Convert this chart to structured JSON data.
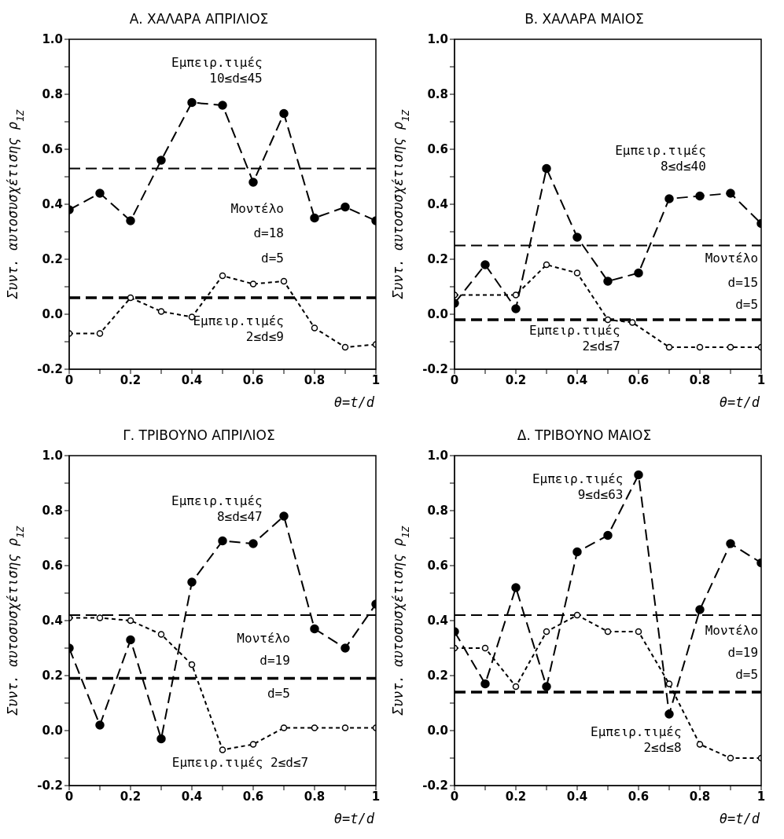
{
  "chart_data": [
    {
      "type": "line",
      "title": "Α. ΧΑΛΑΡΑ ΑΠΡΙΛΙΟΣ",
      "xlabel": "θ=t/d",
      "ylabel": "Συντ. αυτοσυσχέτισης ρ$_{1Z}$",
      "x": [
        0,
        0.1,
        0.2,
        0.3,
        0.4,
        0.5,
        0.6,
        0.7,
        0.8,
        0.9,
        1
      ],
      "series": [
        {
          "name": "Εμπειρ.τιμές 10≤d≤45",
          "color": "#000000",
          "line_style": "dashed",
          "values": [
            0.38,
            0.44,
            0.34,
            0.56,
            0.77,
            0.76,
            0.48,
            0.73,
            0.35,
            0.39,
            0.34
          ]
        },
        {
          "name": "Εμπειρ.τιμές 2≤d≤9",
          "color": "#000000",
          "line_style": "dotted",
          "values": [
            -0.07,
            -0.07,
            0.06,
            0.01,
            -0.01,
            0.14,
            0.11,
            0.12,
            -0.05,
            -0.12,
            -0.11
          ]
        }
      ],
      "ref_lines": [
        {
          "axis": "y",
          "value": 0.53,
          "line_style": "dashed"
        },
        {
          "axis": "y",
          "value": 0.06,
          "line_style": "dashed"
        }
      ],
      "annotations": [
        "Μοντέλο",
        "d=18",
        "d=5"
      ],
      "marker": "circle",
      "xlim": [
        0,
        1
      ],
      "xticks": [
        {
          "value": 0,
          "label": "0"
        },
        {
          "value": 0.1,
          "label": null
        },
        {
          "value": 0.2,
          "label": "0.2"
        },
        {
          "value": 0.3,
          "label": null
        },
        {
          "value": 0.4,
          "label": "0.4"
        },
        {
          "value": 0.5,
          "label": null
        },
        {
          "value": 0.6,
          "label": "0.6"
        },
        {
          "value": 0.7,
          "label": null
        },
        {
          "value": 0.8,
          "label": "0.8"
        },
        {
          "value": 0.9,
          "label": null
        },
        {
          "value": 1,
          "label": "1"
        }
      ],
      "ylim": [
        -0.2,
        1
      ],
      "yticks": [
        {
          "value": -0.2,
          "label": "-0.2"
        },
        {
          "value": -0.1,
          "label": null
        },
        {
          "value": 0,
          "label": "0.0"
        },
        {
          "value": 0.1,
          "label": null
        },
        {
          "value": 0.2,
          "label": "0.2"
        },
        {
          "value": 0.3,
          "label": null
        },
        {
          "value": 0.4,
          "label": "0.4"
        },
        {
          "value": 0.5,
          "label": null
        },
        {
          "value": 0.6,
          "label": "0.6"
        },
        {
          "value": 0.7,
          "label": null
        },
        {
          "value": 0.8,
          "label": "0.8"
        },
        {
          "value": 0.9,
          "label": null
        },
        {
          "value": 1,
          "label": "1.0"
        }
      ]
    },
    {
      "type": "line",
      "title": "Β. ΧΑΛΑΡΑ ΜΑΙΟΣ",
      "xlabel": "θ=t/d",
      "ylabel": "Συντ. αυτοσυσχέτισης ρ$_{1Z}$",
      "x": [
        0,
        0.1,
        0.2,
        0.3,
        0.4,
        0.5,
        0.6,
        0.7,
        0.8,
        0.9,
        1
      ],
      "series": [
        {
          "name": "Εμπειρ.τιμές 8≤d≤40",
          "color": "#000000",
          "line_style": "dashed",
          "values": [
            0.04,
            0.18,
            0.02,
            0.53,
            0.28,
            0.12,
            0.15,
            0.42,
            0.43,
            0.44,
            0.33
          ]
        },
        {
          "name": "Εμπειρ.τιμές 2≤d≤7",
          "color": "#000000",
          "line_style": "dotted",
          "x": [
            0,
            0.2,
            0.3,
            0.4,
            0.5,
            0.58,
            0.7,
            0.8,
            0.9,
            1
          ],
          "values": [
            0.07,
            0.07,
            0.18,
            0.15,
            -0.02,
            -0.03,
            -0.12,
            -0.12,
            -0.12,
            -0.12
          ]
        }
      ],
      "ref_lines": [
        {
          "axis": "y",
          "value": 0.25,
          "line_style": "dashed"
        },
        {
          "axis": "y",
          "value": -0.02,
          "line_style": "dashed"
        }
      ],
      "annotations": [
        "Μοντέλο",
        "d=15",
        "d=5"
      ],
      "marker": "circle",
      "xlim": [
        0,
        1
      ],
      "xticks": [
        {
          "value": 0,
          "label": "0"
        },
        {
          "value": 0.1,
          "label": null
        },
        {
          "value": 0.2,
          "label": "0.2"
        },
        {
          "value": 0.3,
          "label": null
        },
        {
          "value": 0.4,
          "label": "0.4"
        },
        {
          "value": 0.5,
          "label": null
        },
        {
          "value": 0.6,
          "label": "0.6"
        },
        {
          "value": 0.7,
          "label": null
        },
        {
          "value": 0.8,
          "label": "0.8"
        },
        {
          "value": 0.9,
          "label": null
        },
        {
          "value": 1,
          "label": "1"
        }
      ],
      "ylim": [
        -0.2,
        1
      ],
      "yticks": [
        {
          "value": -0.2,
          "label": "-0.2"
        },
        {
          "value": -0.1,
          "label": null
        },
        {
          "value": 0,
          "label": "0.0"
        },
        {
          "value": 0.1,
          "label": null
        },
        {
          "value": 0.2,
          "label": "0.2"
        },
        {
          "value": 0.3,
          "label": null
        },
        {
          "value": 0.4,
          "label": "0.4"
        },
        {
          "value": 0.5,
          "label": null
        },
        {
          "value": 0.6,
          "label": "0.6"
        },
        {
          "value": 0.7,
          "label": null
        },
        {
          "value": 0.8,
          "label": "0.8"
        },
        {
          "value": 0.9,
          "label": null
        },
        {
          "value": 1,
          "label": "1.0"
        }
      ]
    },
    {
      "type": "line",
      "title": "Γ. ΤΡΙΒΟΥΝΟ ΑΠΡΙΛΙΟΣ",
      "xlabel": "θ=t/d",
      "ylabel": "Συντ. αυτοσυσχέτισης ρ$_{1Z}$",
      "x": [
        0,
        0.1,
        0.2,
        0.3,
        0.4,
        0.5,
        0.6,
        0.7,
        0.8,
        0.9,
        1
      ],
      "series": [
        {
          "name": "Εμπειρ.τιμές 8≤d≤47",
          "color": "#000000",
          "line_style": "dashed",
          "values": [
            0.3,
            0.02,
            0.33,
            -0.03,
            0.54,
            0.69,
            0.68,
            0.78,
            0.37,
            0.3,
            0.46
          ]
        },
        {
          "name": "Εμπειρ.τιμές 2≤d≤7",
          "color": "#000000",
          "line_style": "dotted",
          "values": [
            0.41,
            0.41,
            0.4,
            0.35,
            0.24,
            -0.07,
            -0.05,
            0.01,
            0.01,
            0.01,
            0.01
          ]
        }
      ],
      "ref_lines": [
        {
          "axis": "y",
          "value": 0.42,
          "line_style": "dashed"
        },
        {
          "axis": "y",
          "value": 0.19,
          "line_style": "dashed"
        }
      ],
      "annotations": [
        "Μοντέλο",
        "d=19",
        "d=5"
      ],
      "marker": "circle",
      "xlim": [
        0,
        1
      ],
      "xticks": [
        {
          "value": 0,
          "label": "0"
        },
        {
          "value": 0.1,
          "label": null
        },
        {
          "value": 0.2,
          "label": "0.2"
        },
        {
          "value": 0.3,
          "label": null
        },
        {
          "value": 0.4,
          "label": "0.4"
        },
        {
          "value": 0.5,
          "label": null
        },
        {
          "value": 0.6,
          "label": "0.6"
        },
        {
          "value": 0.7,
          "label": null
        },
        {
          "value": 0.8,
          "label": "0.8"
        },
        {
          "value": 0.9,
          "label": null
        },
        {
          "value": 1,
          "label": "1"
        }
      ],
      "ylim": [
        -0.2,
        1
      ],
      "yticks": [
        {
          "value": -0.2,
          "label": "-0.2"
        },
        {
          "value": -0.1,
          "label": null
        },
        {
          "value": 0,
          "label": "0.0"
        },
        {
          "value": 0.1,
          "label": null
        },
        {
          "value": 0.2,
          "label": "0.2"
        },
        {
          "value": 0.3,
          "label": null
        },
        {
          "value": 0.4,
          "label": "0.4"
        },
        {
          "value": 0.5,
          "label": null
        },
        {
          "value": 0.6,
          "label": "0.6"
        },
        {
          "value": 0.7,
          "label": null
        },
        {
          "value": 0.8,
          "label": "0.8"
        },
        {
          "value": 0.9,
          "label": null
        },
        {
          "value": 1,
          "label": "1.0"
        }
      ]
    },
    {
      "type": "line",
      "title": "Δ. ΤΡΙΒΟΥΝΟ ΜΑΙΟΣ",
      "xlabel": "θ=t/d",
      "ylabel": "Συντ. αυτοσυσχέτισης ρ$_{1Z}$",
      "x": [
        0,
        0.1,
        0.2,
        0.3,
        0.4,
        0.5,
        0.6,
        0.7,
        0.8,
        0.9,
        1
      ],
      "series": [
        {
          "name": "Εμπειρ.τιμές 9≤d≤63",
          "color": "#000000",
          "line_style": "dashed",
          "values": [
            0.36,
            0.17,
            0.52,
            0.16,
            0.65,
            0.71,
            0.93,
            0.06,
            0.44,
            0.68,
            0.61
          ]
        },
        {
          "name": "Εμπειρ.τιμές 2≤d≤8",
          "color": "#000000",
          "line_style": "dotted",
          "values": [
            0.3,
            0.3,
            0.16,
            0.36,
            0.42,
            0.36,
            0.36,
            0.17,
            -0.05,
            -0.1,
            -0.1
          ]
        }
      ],
      "ref_lines": [
        {
          "axis": "y",
          "value": 0.42,
          "line_style": "dashed"
        },
        {
          "axis": "y",
          "value": 0.14,
          "line_style": "dashed"
        }
      ],
      "annotations": [
        "Μοντέλο",
        "d=19",
        "d=5"
      ],
      "marker": "circle",
      "xlim": [
        0,
        1
      ],
      "xticks": [
        {
          "value": 0,
          "label": "0"
        },
        {
          "value": 0.1,
          "label": null
        },
        {
          "value": 0.2,
          "label": "0.2"
        },
        {
          "value": 0.3,
          "label": null
        },
        {
          "value": 0.4,
          "label": "0.4"
        },
        {
          "value": 0.5,
          "label": null
        },
        {
          "value": 0.6,
          "label": "0.6"
        },
        {
          "value": 0.7,
          "label": null
        },
        {
          "value": 0.8,
          "label": "0.8"
        },
        {
          "value": 0.9,
          "label": null
        },
        {
          "value": 1,
          "label": "1"
        }
      ],
      "ylim": [
        -0.2,
        1
      ],
      "yticks": [
        {
          "value": -0.2,
          "label": "-0.2"
        },
        {
          "value": -0.1,
          "label": null
        },
        {
          "value": 0,
          "label": "0.0"
        },
        {
          "value": 0.1,
          "label": null
        },
        {
          "value": 0.2,
          "label": "0.2"
        },
        {
          "value": 0.3,
          "label": null
        },
        {
          "value": 0.4,
          "label": "0.4"
        },
        {
          "value": 0.5,
          "label": null
        },
        {
          "value": 0.6,
          "label": "0.6"
        },
        {
          "value": 0.7,
          "label": null
        },
        {
          "value": 0.8,
          "label": "0.8"
        },
        {
          "value": 0.9,
          "label": null
        },
        {
          "value": 1,
          "label": "1.0"
        }
      ]
    }
  ]
}
